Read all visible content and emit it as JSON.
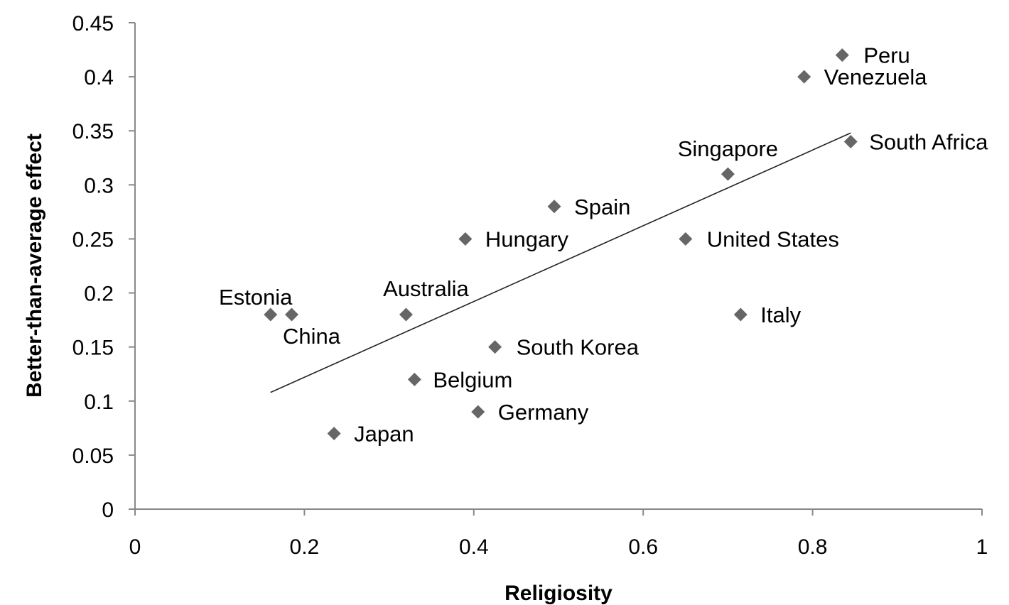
{
  "chart_data": {
    "type": "scatter",
    "title": "",
    "xlabel": "Religiosity",
    "ylabel": "Better-than-average effect",
    "xlim": [
      0,
      1
    ],
    "ylim": [
      0,
      0.45
    ],
    "x_ticks": [
      "0",
      "0.2",
      "0.4",
      "0.6",
      "0.8",
      "1"
    ],
    "y_ticks": [
      "0",
      "0.05",
      "0.1",
      "0.15",
      "0.2",
      "0.25",
      "0.3",
      "0.35",
      "0.4",
      "0.45"
    ],
    "grid": false,
    "legend": "none",
    "marker": "diamond",
    "marker_color": "#666666",
    "points": [
      {
        "label": "Peru",
        "x": 0.835,
        "y": 0.42
      },
      {
        "label": "Venezuela",
        "x": 0.79,
        "y": 0.4
      },
      {
        "label": "South Africa",
        "x": 0.845,
        "y": 0.34
      },
      {
        "label": "Singapore",
        "x": 0.7,
        "y": 0.31
      },
      {
        "label": "Spain",
        "x": 0.495,
        "y": 0.28
      },
      {
        "label": "Hungary",
        "x": 0.39,
        "y": 0.25
      },
      {
        "label": "United States",
        "x": 0.65,
        "y": 0.25
      },
      {
        "label": "Estonia",
        "x": 0.16,
        "y": 0.18
      },
      {
        "label": "China",
        "x": 0.185,
        "y": 0.18
      },
      {
        "label": "Australia",
        "x": 0.32,
        "y": 0.18
      },
      {
        "label": "Italy",
        "x": 0.715,
        "y": 0.18
      },
      {
        "label": "South Korea",
        "x": 0.425,
        "y": 0.15
      },
      {
        "label": "Belgium",
        "x": 0.33,
        "y": 0.12
      },
      {
        "label": "Germany",
        "x": 0.405,
        "y": 0.09
      },
      {
        "label": "Japan",
        "x": 0.235,
        "y": 0.07
      }
    ],
    "trendline": {
      "x": [
        0.16,
        0.845
      ],
      "y": [
        0.108,
        0.348
      ]
    }
  }
}
